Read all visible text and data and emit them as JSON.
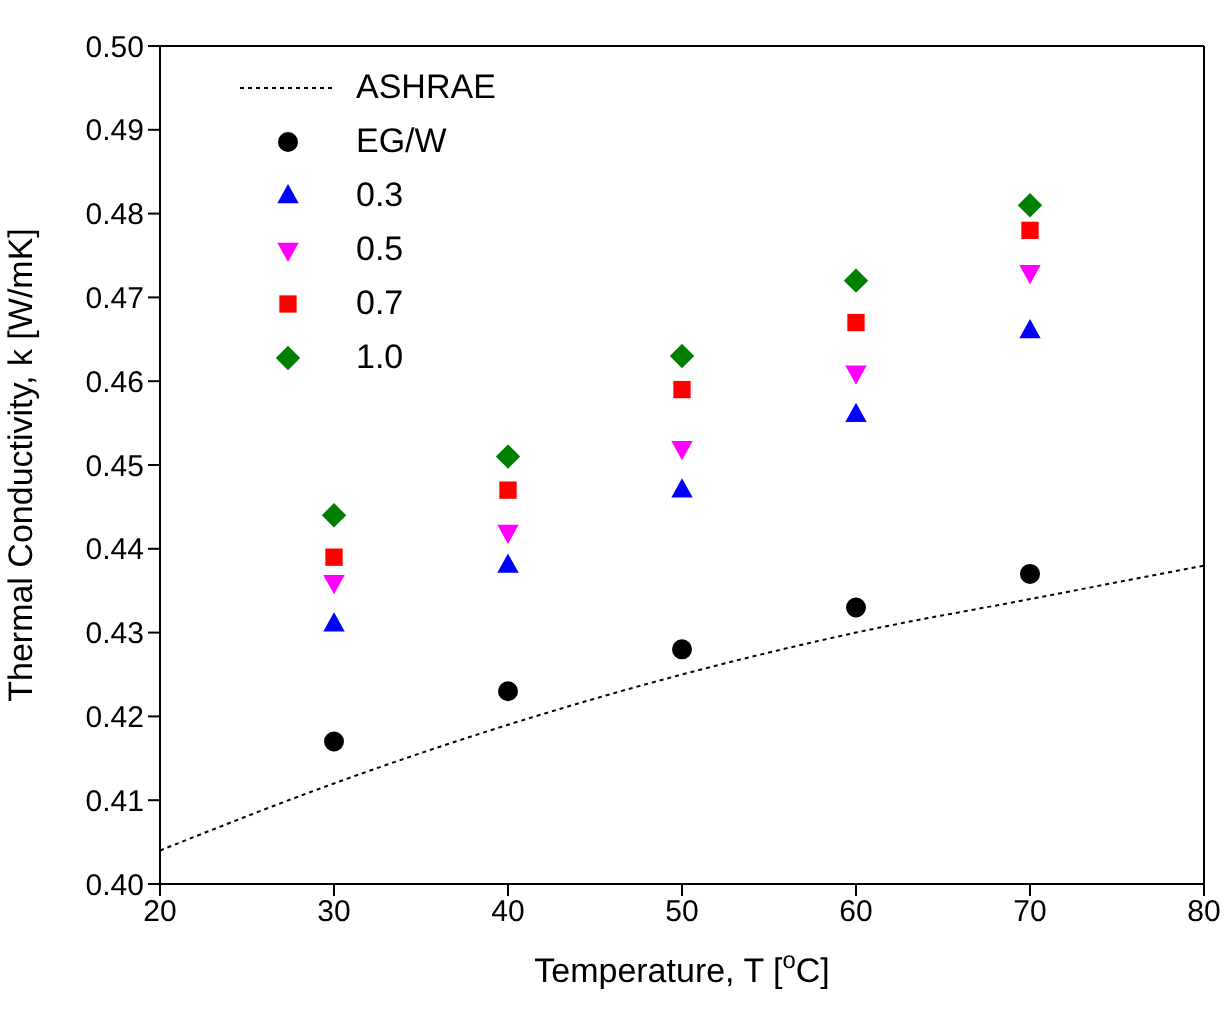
{
  "chart_data": {
    "type": "scatter",
    "xlabel": "Temperature, T [$^{o}$C]",
    "ylabel": "Thermal Conductivity, k [W/mK]",
    "xlim": [
      20,
      80
    ],
    "xticks": [
      20,
      30,
      40,
      50,
      60,
      70,
      80
    ],
    "ylim": [
      0.4,
      0.5
    ],
    "yticks": [
      {
        "value": 0.4,
        "label": "0.40"
      },
      0.41,
      0.42,
      0.43,
      0.44,
      0.45,
      0.46,
      0.47,
      0.48,
      0.49,
      {
        "value": 0.5,
        "label": "0.50"
      }
    ],
    "grid": false,
    "legend": "top left",
    "series": [
      {
        "name": "ASHRAE",
        "type": "line",
        "line_style": "dotted",
        "marker": "none",
        "color": "#000000",
        "x": [
          20,
          30,
          40,
          50,
          60,
          70,
          80
        ],
        "values": [
          0.404,
          0.412,
          0.419,
          0.425,
          0.43,
          0.434,
          0.438
        ]
      },
      {
        "name": "EG/W",
        "marker": "circle",
        "color": "#000000",
        "x": [
          30,
          40,
          50,
          60,
          70
        ],
        "values": [
          0.417,
          0.423,
          0.428,
          0.433,
          0.437
        ]
      },
      {
        "name": "0.3",
        "marker": "triangle",
        "color": "#0000ff",
        "x": [
          30,
          40,
          50,
          60,
          70
        ],
        "values": [
          0.431,
          0.438,
          0.447,
          0.456,
          0.466
        ]
      },
      {
        "name": "0.5",
        "marker": "triangle-down",
        "color": "#ff00ff",
        "x": [
          30,
          40,
          50,
          60,
          70
        ],
        "values": [
          0.436,
          0.442,
          0.452,
          0.461,
          0.473
        ]
      },
      {
        "name": "0.7",
        "marker": "square",
        "color": "#ff0000",
        "x": [
          30,
          40,
          50,
          60,
          70
        ],
        "values": [
          0.439,
          0.447,
          0.459,
          0.467,
          0.478
        ]
      },
      {
        "name": "1.0",
        "marker": "diamond",
        "color": "#008000",
        "x": [
          30,
          40,
          50,
          60,
          70
        ],
        "values": [
          0.444,
          0.451,
          0.463,
          0.472,
          0.481
        ]
      }
    ]
  }
}
